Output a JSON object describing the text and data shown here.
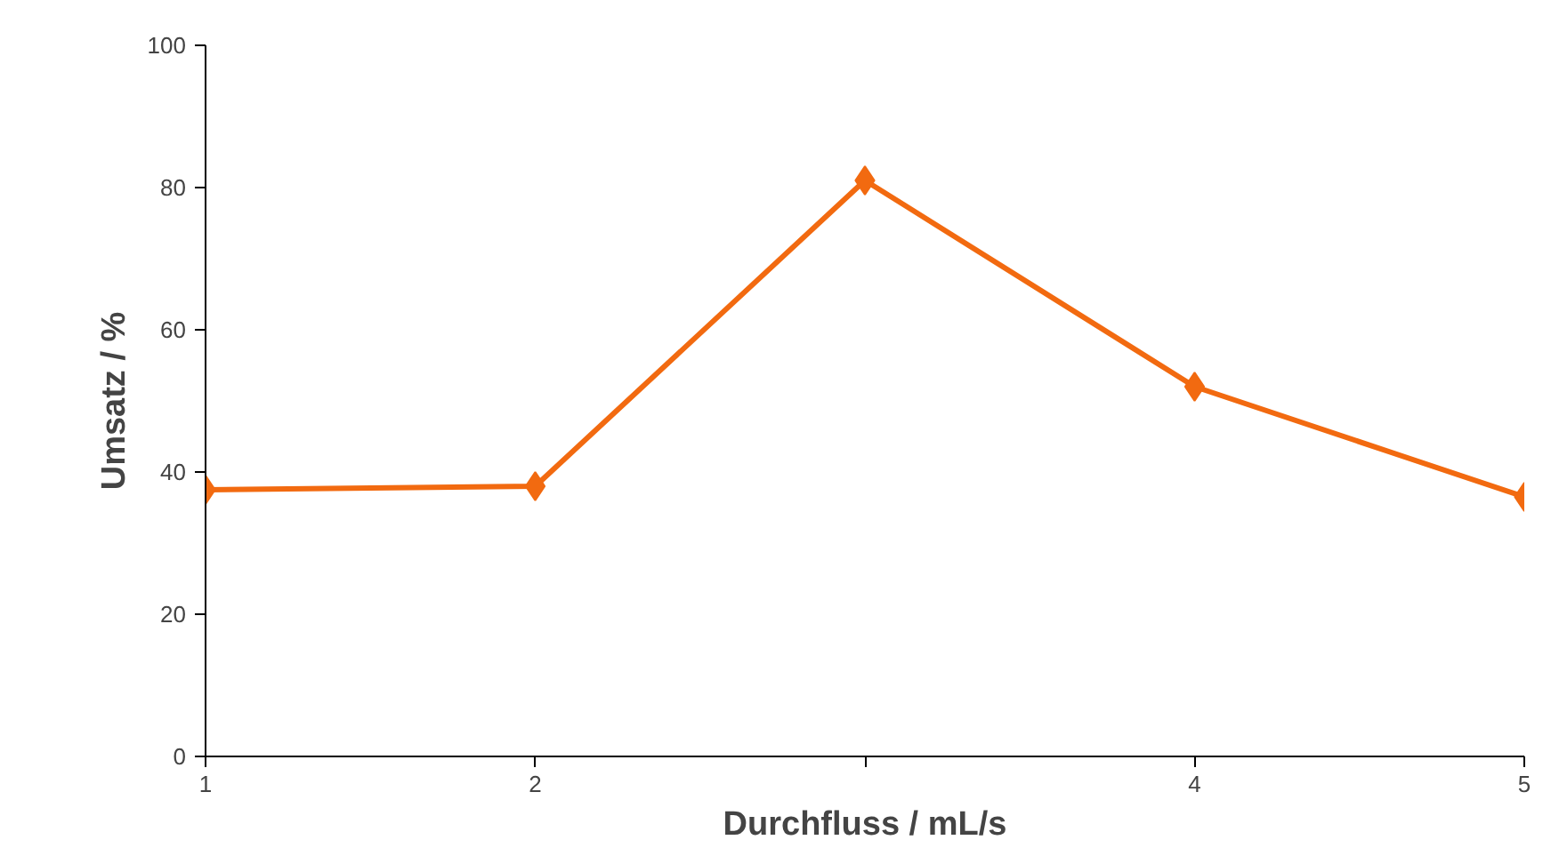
{
  "chart_data": {
    "type": "line",
    "xlabel": "Durchfluss / mL/s",
    "ylabel": "Umsatz / %",
    "x": [
      1,
      2,
      3,
      4,
      5
    ],
    "series": [
      {
        "color": "#f26a10",
        "values": [
          37.5,
          38,
          81,
          52,
          36.5
        ]
      }
    ],
    "xlim": [
      1,
      5
    ],
    "xticks": [
      1,
      2,
      {
        "value": 3,
        "label": null
      },
      4,
      5
    ],
    "ylim": [
      0,
      100
    ],
    "yticks": [
      0,
      20,
      40,
      60,
      80,
      100
    ],
    "grid": false,
    "marker": "diamond",
    "line_style": "solid"
  }
}
